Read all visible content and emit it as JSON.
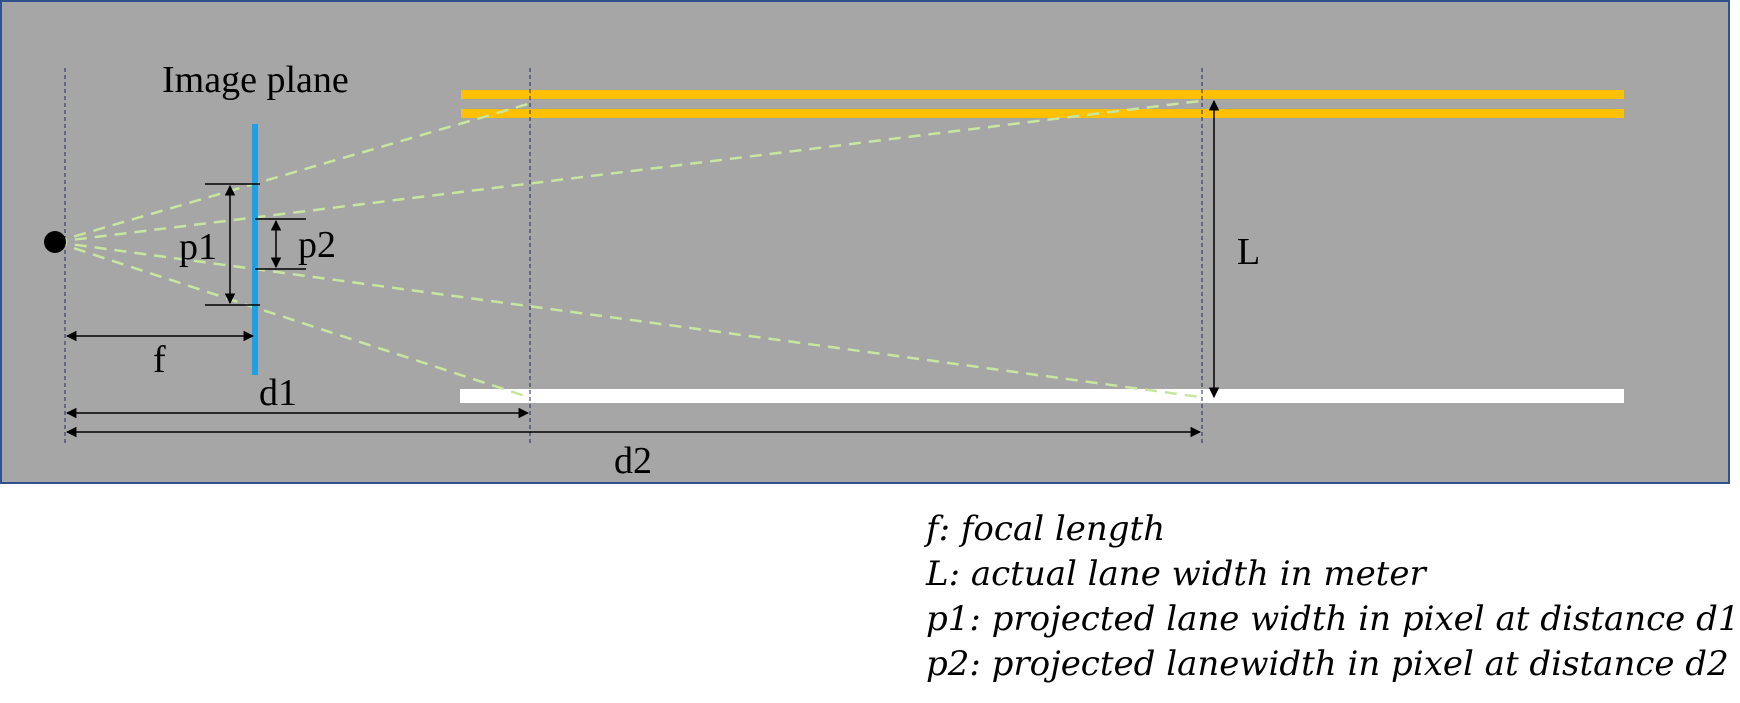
{
  "colors": {
    "road_background": "#a6a6a6",
    "image_plane": "#1ea0e6",
    "yellow_line": "#ffc000",
    "white_line": "#ffffff",
    "ray": "#c8e6a0",
    "border": "#2f528f"
  },
  "labels": {
    "image_plane": "Image plane",
    "p1": "p1",
    "p2": "p2",
    "f": "f",
    "d1": "d1",
    "d2": "d2",
    "L": "L"
  },
  "legend": [
    "f:  focal length",
    "L:  actual lane width in meter",
    "p1:  projected lane width in pixel at distance d1",
    "p2:  projected lanewidth in pixel at distance d2"
  ]
}
